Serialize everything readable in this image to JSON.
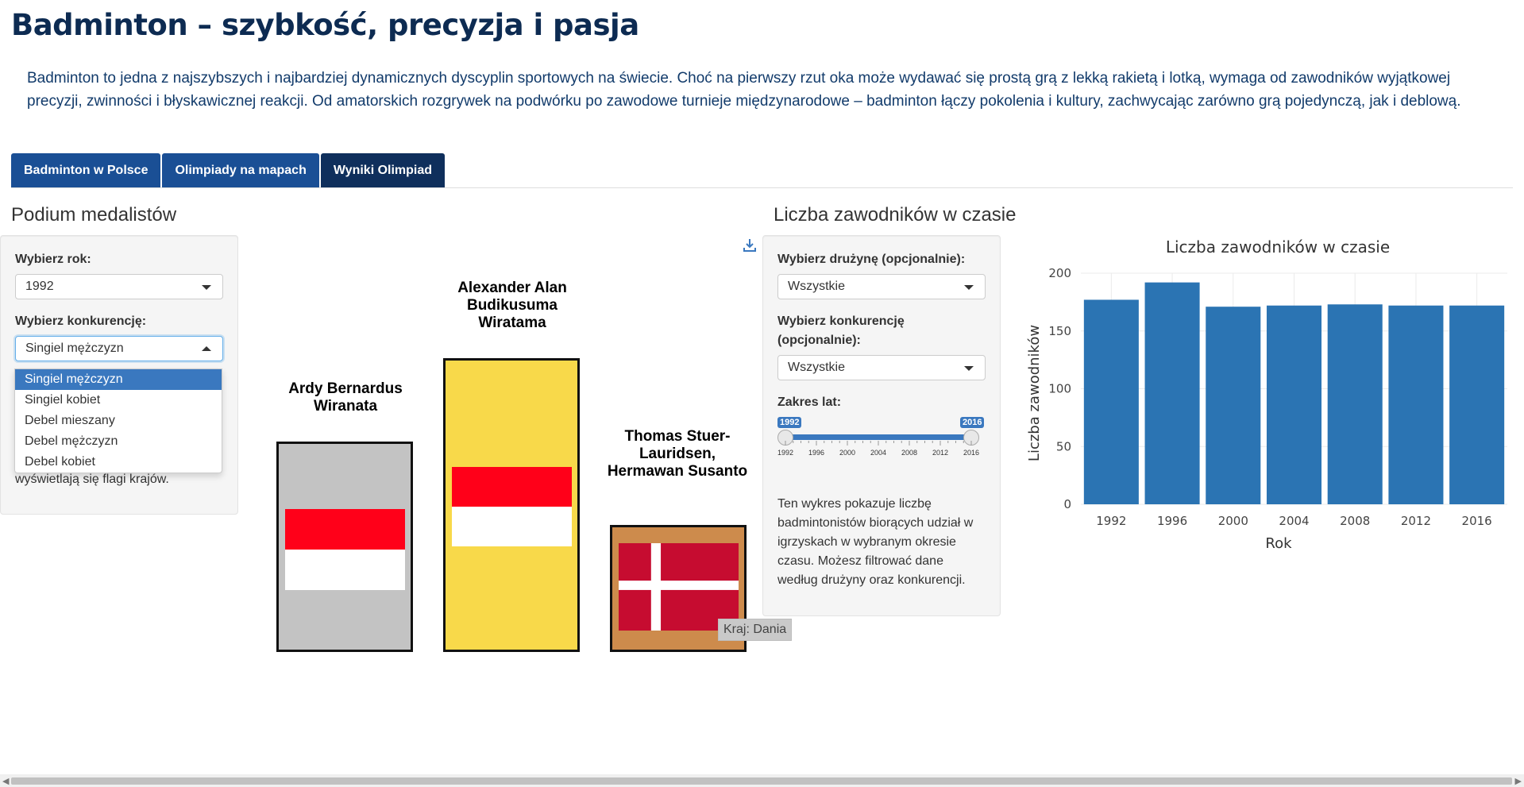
{
  "page": {
    "title": "Badminton – szybkość, precyzja i pasja",
    "intro": "Badminton to jedna z najszybszych i najbardziej dynamicznych dyscyplin sportowych na świecie. Choć na pierwszy rzut oka może wydawać się prostą grą z lekką rakietą i lotką, wymaga od zawodników wyjątkowej precyzji, zwinności i błyskawicznej reakcji. Od amatorskich rozgrywek na podwórku po zawodowe turnieje międzynarodowe – badminton łączy pokolenia i kultury, zachwycając zarówno grą pojedynczą, jak i deblową."
  },
  "tabs": [
    {
      "label": "Badminton w Polsce"
    },
    {
      "label": "Olimpiady na mapach"
    },
    {
      "label": "Wyniki Olimpiad"
    }
  ],
  "podium": {
    "section_title": "Podium medalistów",
    "year_label": "Wybierz rok:",
    "year_value": "1992",
    "event_label": "Wybierz konkurencję:",
    "event_value": "Singiel mężczyzn",
    "event_options": [
      "Singiel mężczyzn",
      "Singiel kobiet",
      "Debel mieszany",
      "Debel mężczyzn",
      "Debel kobiet"
    ],
    "note_partial": "wyświetlają się flagi krajów.",
    "first": {
      "name": "Alexander Alan Budikusuma Wiratama",
      "color": "#f8d94a"
    },
    "second": {
      "name": "Ardy Bernardus Wiranata",
      "color": "#c3c3c3"
    },
    "third": {
      "name": "Thomas Stuer-Lauridsen, Hermawan Susanto",
      "color": "#cd8b4c"
    },
    "tooltip": "Kraj: Dania",
    "icons": {
      "download": "download-icon"
    }
  },
  "athletes": {
    "section_title": "Liczba zawodników w czasie",
    "team_label": "Wybierz drużynę (opcjonalnie):",
    "team_value": "Wszystkie",
    "event_label": "Wybierz konkurencję (opcjonalnie):",
    "event_value": "Wszystkie",
    "range_label": "Zakres lat:",
    "range_min_value": "1992",
    "range_max_value": "2016",
    "range_ticks": [
      "1992",
      "1996",
      "2000",
      "2004",
      "2008",
      "2012",
      "2016"
    ],
    "description": "Ten wykres pokazuje liczbę badmintonistów biorących udział w igrzyskach w wybranym okresie czasu. Możesz filtrować dane według drużyny oraz konkurencji."
  },
  "chart_data": {
    "type": "bar",
    "title": "Liczba zawodników w czasie",
    "xlabel": "Rok",
    "ylabel": "Liczba zawodników",
    "categories": [
      "1992",
      "1996",
      "2000",
      "2004",
      "2008",
      "2012",
      "2016"
    ],
    "values": [
      177,
      192,
      171,
      172,
      173,
      172,
      172
    ],
    "ylim": [
      0,
      200
    ],
    "yticks": [
      0,
      50,
      100,
      150,
      200
    ],
    "grid": true,
    "color": "#2b74b3"
  }
}
